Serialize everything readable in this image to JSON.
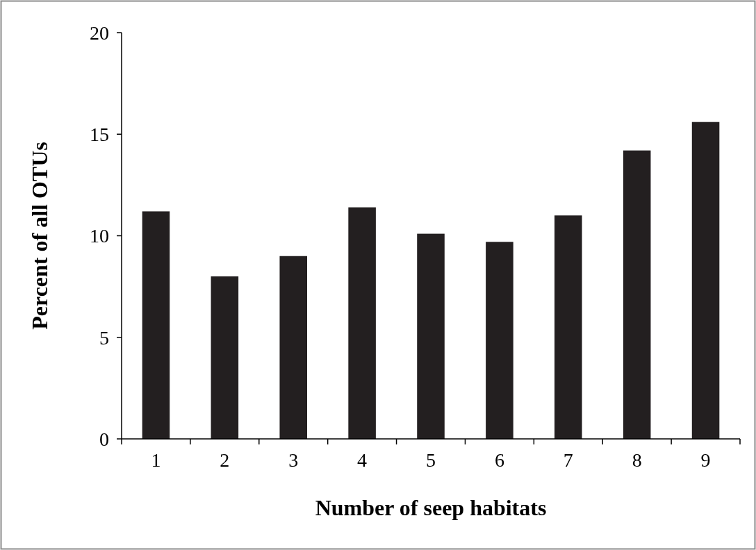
{
  "chart_data": {
    "type": "bar",
    "xlabel": "Number of seep habitats",
    "ylabel": "Percent of all OTUs",
    "categories": [
      "1",
      "2",
      "3",
      "4",
      "5",
      "6",
      "7",
      "8",
      "9"
    ],
    "values": [
      11.2,
      8.0,
      9.0,
      11.4,
      10.1,
      9.7,
      11.0,
      14.2,
      15.6
    ],
    "color": "#231f20",
    "ylim": [
      0,
      20
    ],
    "yticks": [
      0,
      5,
      10,
      15,
      20
    ]
  }
}
